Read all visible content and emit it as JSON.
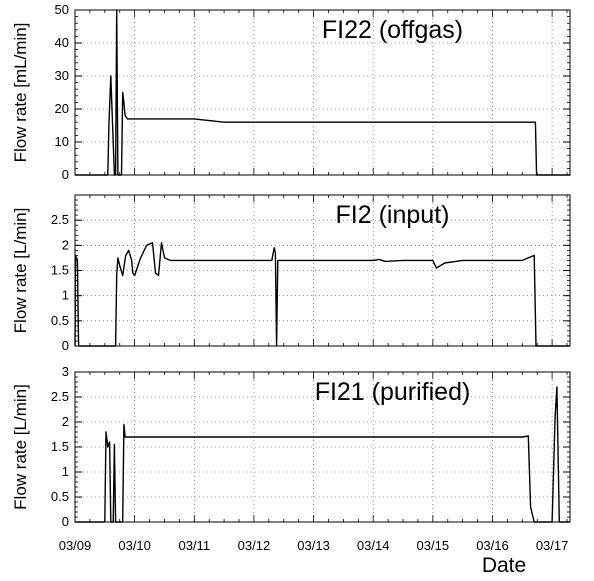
{
  "chart_data": [
    {
      "type": "line",
      "title": "FI22 (offgas)",
      "ylabel": "Flow rate [mL/min]",
      "xlabel": "",
      "ylim": [
        0,
        50
      ],
      "yticks": [
        0,
        10,
        20,
        30,
        40,
        50
      ],
      "xlim": [
        0,
        8.3
      ],
      "grid": true,
      "series_color": "#000000",
      "series": [
        {
          "x": [
            0,
            0.55,
            0.57,
            0.6,
            0.62,
            0.66,
            0.68,
            0.7,
            0.72,
            0.74,
            0.76,
            0.78,
            0.8,
            0.82,
            0.84,
            0.88,
            1.0,
            1.2,
            1.5,
            2.0,
            2.5,
            3.0,
            3.5,
            4.0,
            4.5,
            5.0,
            5.5,
            6.0,
            6.5,
            7.0,
            7.5,
            7.72,
            7.74,
            8.3
          ],
          "y": [
            0,
            0,
            16,
            30,
            20,
            0,
            0,
            50,
            0,
            0,
            0,
            0,
            25,
            22,
            18,
            17,
            17,
            17,
            17,
            17,
            16,
            16,
            16,
            16,
            16,
            16,
            16,
            16,
            16,
            16,
            16,
            16,
            0,
            0
          ]
        }
      ]
    },
    {
      "type": "line",
      "title": "FI2 (input)",
      "ylabel": "Flow rate [L/min]",
      "xlabel": "",
      "ylim": [
        0,
        3
      ],
      "yticks": [
        0,
        0.5,
        1,
        1.5,
        2,
        2.5
      ],
      "xlim": [
        0,
        8.3
      ],
      "grid": true,
      "series_color": "#000000",
      "series": [
        {
          "x": [
            0,
            0.01,
            0.04,
            0.06,
            0.08,
            0.1,
            0.5,
            0.55,
            0.68,
            0.7,
            0.72,
            0.75,
            0.8,
            0.85,
            0.9,
            0.95,
            0.97,
            1.0,
            1.1,
            1.2,
            1.3,
            1.35,
            1.4,
            1.45,
            1.5,
            1.6,
            1.8,
            2.0,
            2.5,
            3.0,
            3.2,
            3.3,
            3.34,
            3.36,
            3.38,
            3.4,
            3.5,
            4.0,
            4.5,
            5.0,
            5.1,
            5.2,
            5.5,
            6.0,
            6.06,
            6.2,
            6.5,
            7.0,
            7.5,
            7.7,
            7.73,
            7.8,
            8.3
          ],
          "y": [
            0,
            1.8,
            1.7,
            0,
            0,
            0,
            0,
            0,
            0,
            1.4,
            1.75,
            1.6,
            1.4,
            1.8,
            1.9,
            1.7,
            1.45,
            1.4,
            1.75,
            2.0,
            2.05,
            1.45,
            1.4,
            2.05,
            1.75,
            1.7,
            1.7,
            1.7,
            1.7,
            1.7,
            1.7,
            1.7,
            1.95,
            1.85,
            0,
            1.7,
            1.7,
            1.7,
            1.7,
            1.7,
            1.72,
            1.68,
            1.7,
            1.7,
            1.55,
            1.65,
            1.7,
            1.7,
            1.7,
            1.8,
            0,
            0,
            0
          ]
        }
      ]
    },
    {
      "type": "line",
      "title": "FI21 (purified)",
      "ylabel": "Flow rate [L/min]",
      "xlabel": "Date",
      "ylim": [
        0,
        3
      ],
      "yticks": [
        0,
        0.5,
        1,
        1.5,
        2,
        2.5,
        3
      ],
      "xlim": [
        0,
        8.3
      ],
      "xticks": [
        0,
        1,
        2,
        3,
        4,
        5,
        6,
        7,
        8
      ],
      "xticklabels": [
        "03/09",
        "03/10",
        "03/11",
        "03/12",
        "03/13",
        "03/14",
        "03/15",
        "03/16",
        "03/17"
      ],
      "grid": true,
      "series_color": "#000000",
      "series": [
        {
          "x": [
            0,
            0.5,
            0.52,
            0.55,
            0.58,
            0.6,
            0.64,
            0.66,
            0.68,
            0.8,
            0.82,
            0.84,
            0.88,
            1.0,
            1.5,
            2.0,
            2.5,
            3.0,
            3.5,
            4.0,
            4.5,
            5.0,
            5.5,
            6.0,
            6.5,
            7.0,
            7.5,
            7.6,
            7.64,
            7.7,
            7.75,
            7.8,
            8.0,
            8.05,
            8.08,
            8.12,
            8.3
          ],
          "y": [
            0,
            0,
            1.8,
            1.5,
            1.6,
            0,
            0,
            1.55,
            0,
            0,
            1.95,
            1.7,
            1.7,
            1.7,
            1.7,
            1.7,
            1.7,
            1.7,
            1.7,
            1.7,
            1.7,
            1.7,
            1.7,
            1.7,
            1.7,
            1.7,
            1.7,
            1.72,
            0.3,
            0,
            0,
            0,
            0,
            2.1,
            2.7,
            0,
            0
          ]
        }
      ]
    }
  ]
}
